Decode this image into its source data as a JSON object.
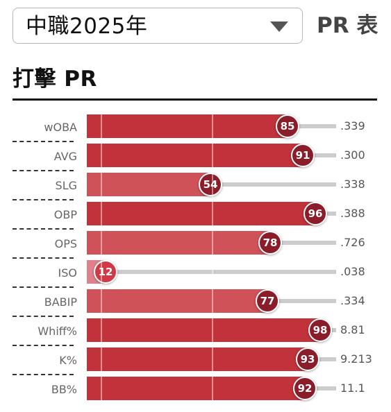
{
  "season_selector": {
    "value": "中職2025年",
    "icon": "chevron-down-icon"
  },
  "view_label": "PR 表",
  "section_title": "打擊 PR",
  "colors": {
    "high": "#c1323b",
    "mid": "#cf5259",
    "low": "#e0808a",
    "badge": "#8b1d2a",
    "badge_low": "#cf3a46",
    "track": "#cccccc"
  },
  "stats": [
    {
      "label": "wOBA",
      "pr": 85,
      "value": ".339"
    },
    {
      "label": "AVG",
      "pr": 91,
      "value": ".300"
    },
    {
      "label": "SLG",
      "pr": 54,
      "value": ".338"
    },
    {
      "label": "OBP",
      "pr": 96,
      "value": ".388"
    },
    {
      "label": "OPS",
      "pr": 78,
      "value": ".726"
    },
    {
      "label": "ISO",
      "pr": 12,
      "value": ".038"
    },
    {
      "label": "BABIP",
      "pr": 77,
      "value": ".334"
    },
    {
      "label": "Whiff%",
      "pr": 98,
      "value": "8.81"
    },
    {
      "label": "K%",
      "pr": 93,
      "value": "9.213"
    },
    {
      "label": "BB%",
      "pr": 92,
      "value": "11.1"
    }
  ]
}
